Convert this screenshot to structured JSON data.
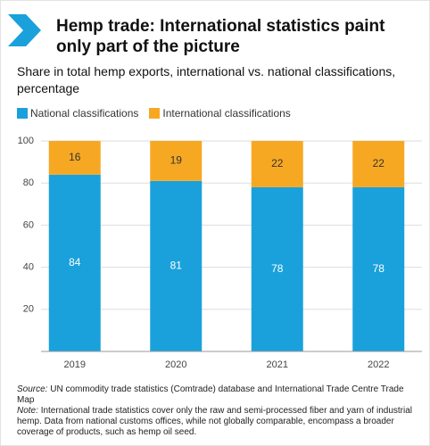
{
  "chart_data": {
    "type": "stacked-bar",
    "title": "Hemp trade: International statistics paint only part of the picture",
    "subtitle": "Share in total hemp exports, international vs. national classifications, percentage",
    "categories": [
      "2019",
      "2020",
      "2021",
      "2022"
    ],
    "series": [
      {
        "name": "National classifications",
        "color": "#1aa1db",
        "values": [
          84,
          81,
          78,
          78
        ]
      },
      {
        "name": "International classifications",
        "color": "#f7a823",
        "values": [
          16,
          19,
          22,
          22
        ]
      }
    ],
    "ylim": [
      0,
      100
    ],
    "yticks": [
      20,
      40,
      60,
      80,
      100
    ],
    "grid": true,
    "source_label": "Source:",
    "source": "UN commodity trade statistics (Comtrade) database and International Trade Centre Trade Map",
    "note_label": "Note:",
    "note": "International trade statistics cover only the raw and semi-processed fiber and yarn of industrial hemp. Data from national customs offices, while not globally comparable, encompass a broader coverage of products, such as hemp oil seed."
  }
}
